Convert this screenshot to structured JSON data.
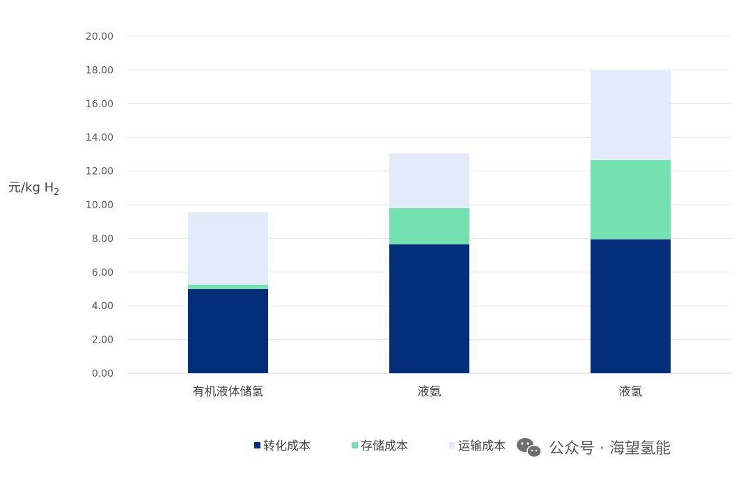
{
  "chart_data": {
    "type": "bar",
    "stacked": true,
    "ylabel": {
      "main": "元/kg H",
      "subscript": "2"
    },
    "ylim": [
      0,
      20
    ],
    "y_ticks": [
      "0.00",
      "2.00",
      "4.00",
      "6.00",
      "8.00",
      "10.00",
      "12.00",
      "14.00",
      "16.00",
      "18.00",
      "20.00"
    ],
    "categories": [
      "有机液体储氢",
      "液氨",
      "液氢"
    ],
    "series": [
      {
        "name": "转化成本",
        "color": "#052E7A",
        "values": [
          5.0,
          7.65,
          7.95
        ]
      },
      {
        "name": "存储成本",
        "color": "#74E2B0",
        "values": [
          0.25,
          2.15,
          4.7
        ]
      },
      {
        "name": "运输成本",
        "color": "#E3EBFA",
        "values": [
          4.3,
          3.25,
          5.35
        ]
      }
    ],
    "grid": true,
    "legend_position": "bottom"
  },
  "watermark": {
    "text": "公众号 · 海望氢能",
    "icon": "wechat-icon"
  }
}
